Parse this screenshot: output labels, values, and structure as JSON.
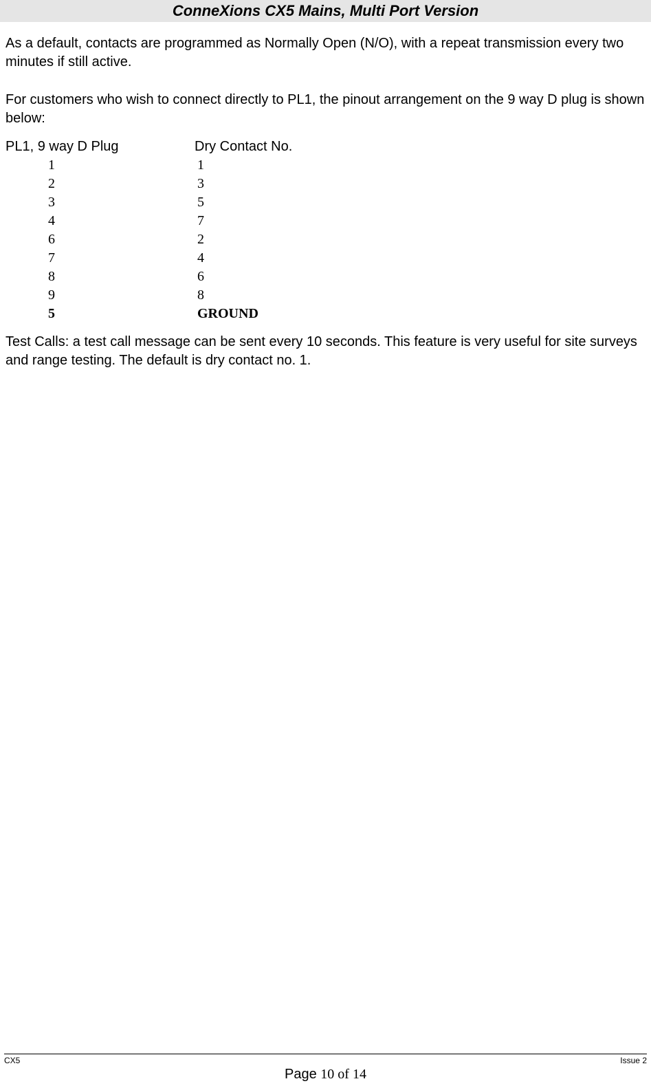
{
  "header": {
    "title": "ConneXions CX5   Mains, Multi Port Version"
  },
  "body": {
    "para1": "As a default, contacts are programmed as Normally Open (N/O), with a repeat transmission every two minutes if still active.",
    "para2": "For customers who wish to connect directly to PL1, the pinout arrangement on the 9 way D plug is shown below:",
    "pinout": {
      "col1_header": "PL1, 9 way D Plug",
      "col2_header": "Dry Contact No.",
      "rows": [
        {
          "c1": "1",
          "c2": "1",
          "bold": false
        },
        {
          "c1": "2",
          "c2": "3",
          "bold": false
        },
        {
          "c1": "3",
          "c2": "5",
          "bold": false
        },
        {
          "c1": "4",
          "c2": "7",
          "bold": false
        },
        {
          "c1": "6",
          "c2": "2",
          "bold": false
        },
        {
          "c1": "7",
          "c2": "4",
          "bold": false
        },
        {
          "c1": "8",
          "c2": "6",
          "bold": false
        },
        {
          "c1": "9",
          "c2": "8",
          "bold": false
        },
        {
          "c1": "5",
          "c2": "GROUND",
          "bold": true
        }
      ]
    },
    "para3": "Test Calls: a test call message can be sent every 10 seconds. This feature is very useful for site surveys and range testing. The default is dry contact no. 1."
  },
  "footer": {
    "left": "CX5",
    "right": "Issue 2",
    "page_label": "Page",
    "page_num": "10 of 14"
  },
  "styling": {
    "header_bg": "#e5e5e5",
    "body_bg": "#ffffff",
    "text_color": "#000000",
    "header_fontsize": 22,
    "body_fontsize": 20,
    "footer_small_fontsize": 12,
    "footer_page_fontsize": 20
  }
}
